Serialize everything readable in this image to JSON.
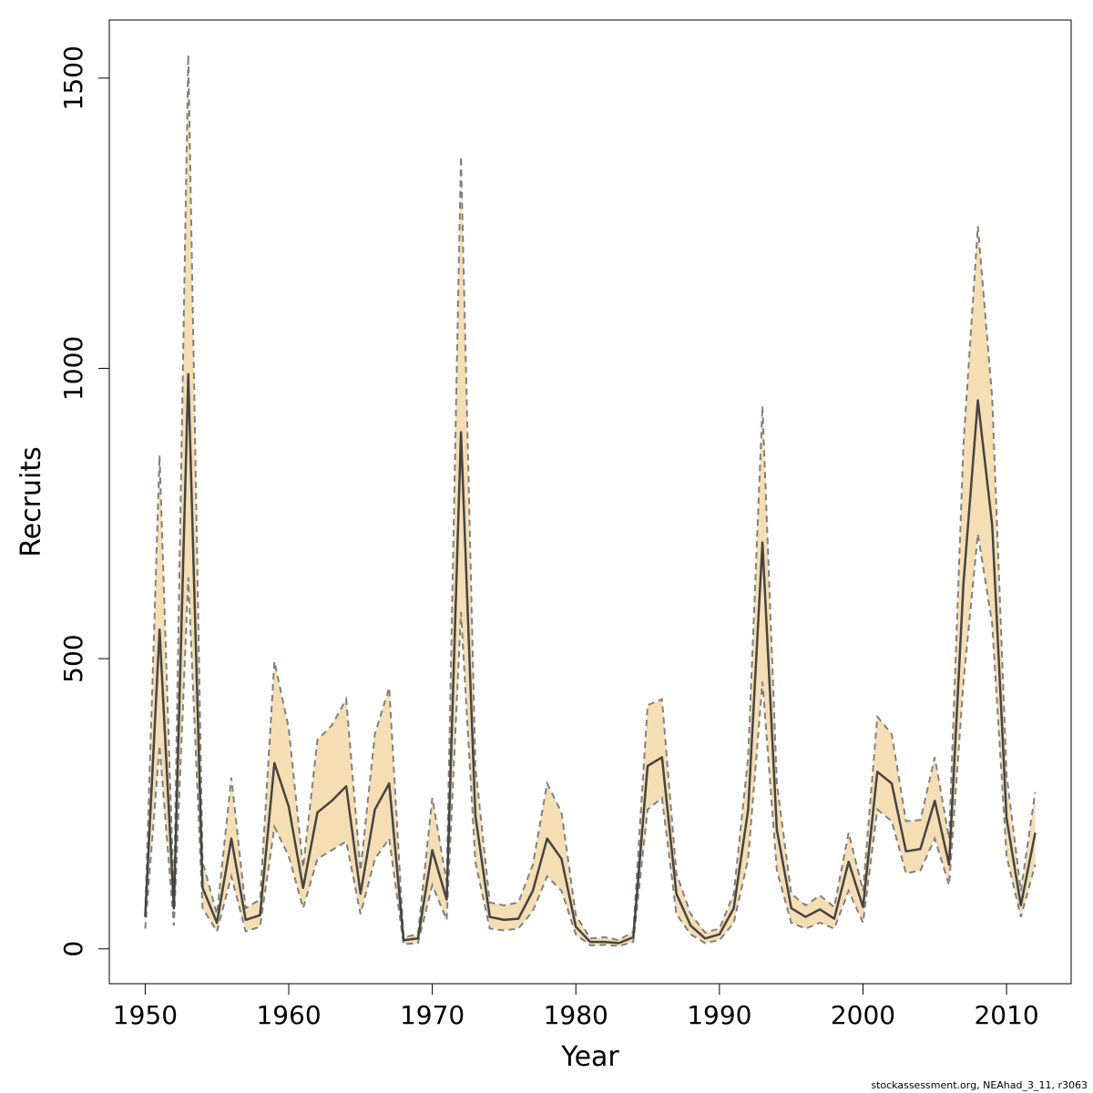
{
  "chart_data": {
    "type": "line",
    "title": "",
    "xlabel": "Year",
    "ylabel": "Recruits",
    "xlim": [
      1947.5,
      2014.5
    ],
    "ylim": [
      -60,
      1600
    ],
    "x_ticks": [
      1950,
      1960,
      1970,
      1980,
      1990,
      2000,
      2010
    ],
    "y_ticks": [
      0,
      500,
      1000,
      1500
    ],
    "grid": false,
    "legend": "none",
    "x": [
      1950,
      1951,
      1952,
      1953,
      1954,
      1955,
      1956,
      1957,
      1958,
      1959,
      1960,
      1961,
      1962,
      1963,
      1964,
      1965,
      1966,
      1967,
      1968,
      1969,
      1970,
      1971,
      1972,
      1973,
      1974,
      1975,
      1976,
      1977,
      1978,
      1979,
      1980,
      1981,
      1982,
      1983,
      1984,
      1985,
      1986,
      1987,
      1988,
      1989,
      1990,
      1991,
      1992,
      1993,
      1994,
      1995,
      1996,
      1997,
      1998,
      1999,
      2000,
      2001,
      2002,
      2003,
      2004,
      2005,
      2006,
      2007,
      2008,
      2009,
      2010,
      2011,
      2012
    ],
    "series": [
      {
        "values": [
          55,
          550,
          70,
          990,
          105,
          45,
          190,
          50,
          58,
          320,
          245,
          105,
          235,
          255,
          280,
          95,
          240,
          285,
          15,
          18,
          170,
          85,
          890,
          230,
          55,
          50,
          52,
          100,
          190,
          155,
          38,
          12,
          12,
          10,
          20,
          315,
          330,
          95,
          40,
          18,
          25,
          70,
          240,
          700,
          205,
          70,
          55,
          68,
          52,
          150,
          72,
          305,
          285,
          168,
          172,
          255,
          145,
          630,
          945,
          730,
          225,
          75,
          200
        ],
        "color": "#444444"
      }
    ],
    "band_upper": [
      60,
      850,
      85,
      1540,
      150,
      60,
      295,
      70,
      85,
      495,
      380,
      140,
      360,
      385,
      430,
      135,
      370,
      450,
      20,
      25,
      260,
      115,
      1365,
      315,
      80,
      75,
      80,
      145,
      285,
      235,
      58,
      18,
      20,
      15,
      30,
      420,
      430,
      130,
      60,
      28,
      35,
      95,
      330,
      935,
      285,
      95,
      75,
      92,
      72,
      200,
      100,
      400,
      370,
      220,
      222,
      330,
      190,
      870,
      1245,
      950,
      300,
      100,
      270
    ],
    "band_lower": [
      35,
      350,
      40,
      640,
      70,
      30,
      125,
      30,
      38,
      210,
      160,
      70,
      155,
      170,
      185,
      60,
      155,
      190,
      8,
      10,
      110,
      50,
      580,
      150,
      35,
      32,
      35,
      65,
      125,
      100,
      25,
      6,
      7,
      5,
      12,
      240,
      260,
      60,
      25,
      10,
      15,
      45,
      155,
      460,
      135,
      45,
      35,
      45,
      35,
      100,
      45,
      240,
      220,
      130,
      135,
      190,
      110,
      460,
      715,
      560,
      160,
      55,
      145
    ],
    "colors": {
      "band_fill": "#f5deb3",
      "band_edge": "#808080",
      "line": "#444444",
      "axis": "#000000"
    }
  },
  "footer": {
    "credit": "stockassessment.org, NEAhad_3_11, r3063"
  }
}
